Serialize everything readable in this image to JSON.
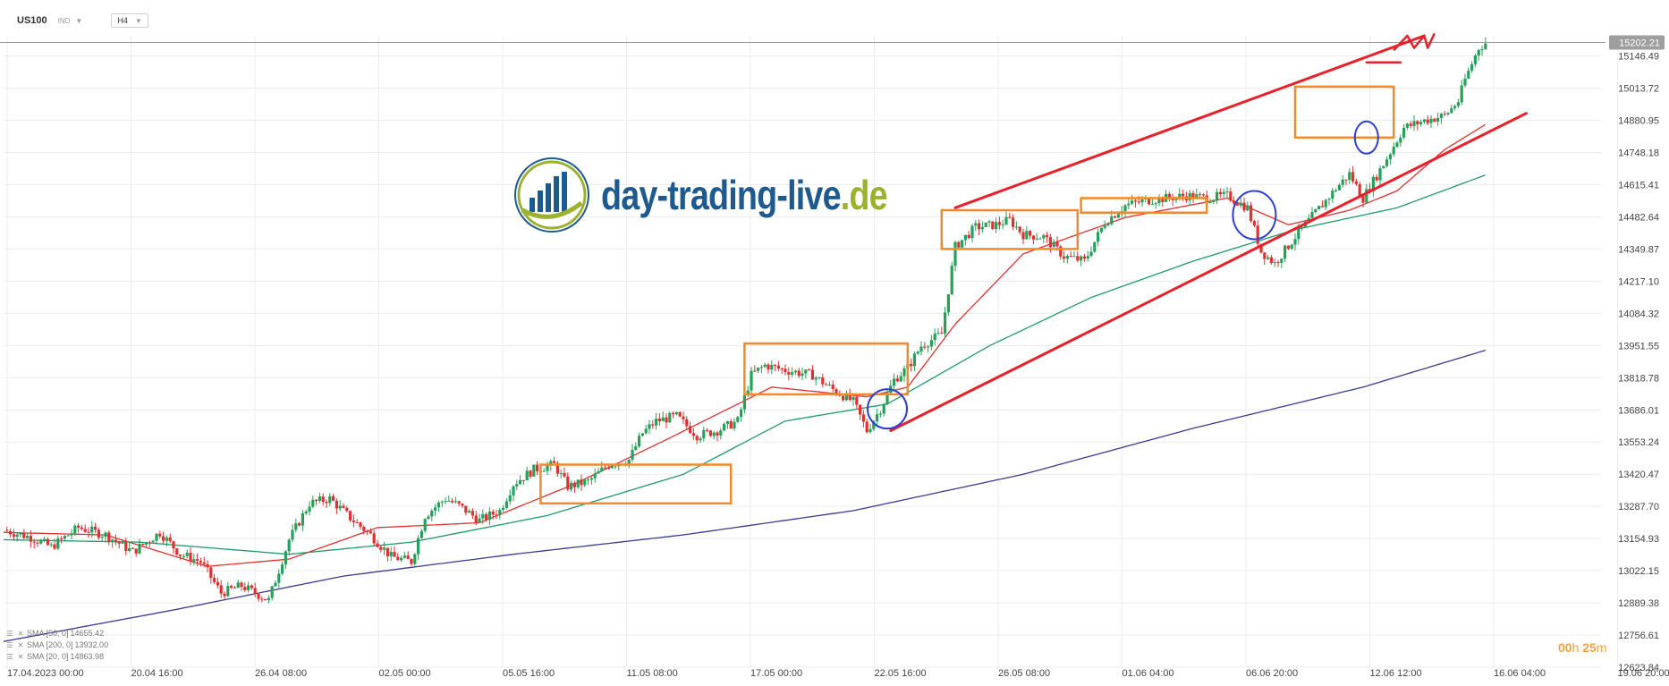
{
  "header": {
    "symbol": "US100",
    "badge": "IND",
    "timeframe": "H4"
  },
  "logo": {
    "name": "day-trading-live",
    "tld": ".de"
  },
  "indicators": [
    {
      "label": "SMA [50, 0]",
      "value": "14655.42"
    },
    {
      "label": "SMA [200, 0]",
      "value": "13932.00"
    },
    {
      "label": "SMA [20, 0]",
      "value": "14863.98"
    }
  ],
  "countdown": {
    "hours": "00",
    "h_unit": "h",
    "minutes": "25",
    "m_unit": "m"
  },
  "colors": {
    "up": "#26a05a",
    "down": "#e0302f",
    "sma20": "#e0302f",
    "sma50": "#1f9a6a",
    "sma200": "#3b3a8c",
    "channel": "#e8202a",
    "boxes": "#f28a2b",
    "circles": "#2f3fd0",
    "price_tag": "#9e9e9e"
  },
  "chart_data": {
    "type": "candlestick",
    "timeframe": "H4",
    "ylim": [
      12623.84,
      15230
    ],
    "y_ticks": [
      "15146.49",
      "15013.72",
      "14880.95",
      "14748.18",
      "14615.41",
      "14482.64",
      "14349.87",
      "14217.10",
      "14084.32",
      "13951.55",
      "13818.78",
      "13686.01",
      "13553.24",
      "13420.47",
      "13287.70",
      "13154.93",
      "13022.15",
      "12889.38",
      "12756.61",
      "12623.84"
    ],
    "x_ticks": [
      "17.04.2023  00:00",
      "20.04  16:00",
      "26.04  08:00",
      "02.05  00:00",
      "05.05  16:00",
      "11.05  08:00",
      "17.05  00:00",
      "22.05  16:00",
      "26.05  08:00",
      "01.06  04:00",
      "06.06  20:00",
      "12.06  12:00",
      "16.06  04:00",
      "19.06  20:00"
    ],
    "last_price": "15202.21",
    "close_path": [
      [
        0,
        13190
      ],
      [
        8,
        13160
      ],
      [
        14,
        13120
      ],
      [
        22,
        13200
      ],
      [
        30,
        13170
      ],
      [
        38,
        13100
      ],
      [
        46,
        13180
      ],
      [
        52,
        13090
      ],
      [
        58,
        13060
      ],
      [
        64,
        12930
      ],
      [
        70,
        12960
      ],
      [
        78,
        12900
      ],
      [
        84,
        13150
      ],
      [
        90,
        13300
      ],
      [
        96,
        13320
      ],
      [
        102,
        13240
      ],
      [
        108,
        13170
      ],
      [
        114,
        13080
      ],
      [
        120,
        13060
      ],
      [
        124,
        13250
      ],
      [
        130,
        13320
      ],
      [
        134,
        13290
      ],
      [
        140,
        13230
      ],
      [
        146,
        13270
      ],
      [
        150,
        13380
      ],
      [
        156,
        13440
      ],
      [
        162,
        13460
      ],
      [
        166,
        13370
      ],
      [
        172,
        13390
      ],
      [
        178,
        13460
      ],
      [
        184,
        13480
      ],
      [
        188,
        13590
      ],
      [
        192,
        13640
      ],
      [
        198,
        13660
      ],
      [
        204,
        13580
      ],
      [
        210,
        13600
      ],
      [
        216,
        13640
      ],
      [
        220,
        13830
      ],
      [
        224,
        13870
      ],
      [
        230,
        13850
      ],
      [
        238,
        13830
      ],
      [
        244,
        13770
      ],
      [
        250,
        13720
      ],
      [
        254,
        13600
      ],
      [
        258,
        13690
      ],
      [
        262,
        13810
      ],
      [
        266,
        13860
      ],
      [
        270,
        13950
      ],
      [
        276,
        14000
      ],
      [
        280,
        14360
      ],
      [
        286,
        14440
      ],
      [
        292,
        14450
      ],
      [
        296,
        14470
      ],
      [
        300,
        14410
      ],
      [
        306,
        14400
      ],
      [
        312,
        14320
      ],
      [
        318,
        14300
      ],
      [
        324,
        14460
      ],
      [
        330,
        14530
      ],
      [
        336,
        14550
      ],
      [
        342,
        14560
      ],
      [
        348,
        14570
      ],
      [
        354,
        14560
      ],
      [
        360,
        14570
      ],
      [
        366,
        14520
      ],
      [
        370,
        14340
      ],
      [
        374,
        14290
      ],
      [
        380,
        14400
      ],
      [
        386,
        14500
      ],
      [
        392,
        14600
      ],
      [
        396,
        14660
      ],
      [
        400,
        14560
      ],
      [
        406,
        14700
      ],
      [
        412,
        14850
      ],
      [
        418,
        14880
      ],
      [
        424,
        14900
      ],
      [
        428,
        14960
      ],
      [
        430,
        15050
      ],
      [
        434,
        15180
      ],
      [
        436,
        15200
      ]
    ],
    "x_index_range": [
      0,
      470
    ],
    "series": [
      {
        "name": "SMA [20, 0]",
        "values": [
          [
            0,
            13180
          ],
          [
            30,
            13170
          ],
          [
            60,
            13040
          ],
          [
            84,
            13070
          ],
          [
            110,
            13200
          ],
          [
            140,
            13220
          ],
          [
            168,
            13380
          ],
          [
            196,
            13570
          ],
          [
            226,
            13780
          ],
          [
            254,
            13740
          ],
          [
            266,
            13780
          ],
          [
            280,
            14040
          ],
          [
            300,
            14330
          ],
          [
            330,
            14480
          ],
          [
            360,
            14560
          ],
          [
            378,
            14450
          ],
          [
            396,
            14510
          ],
          [
            410,
            14590
          ],
          [
            424,
            14760
          ],
          [
            436,
            14863.98
          ]
        ]
      },
      {
        "name": "SMA [50, 0]",
        "values": [
          [
            0,
            13150
          ],
          [
            40,
            13140
          ],
          [
            84,
            13090
          ],
          [
            120,
            13140
          ],
          [
            160,
            13250
          ],
          [
            200,
            13420
          ],
          [
            230,
            13640
          ],
          [
            260,
            13710
          ],
          [
            290,
            13950
          ],
          [
            320,
            14150
          ],
          [
            350,
            14300
          ],
          [
            380,
            14430
          ],
          [
            410,
            14520
          ],
          [
            436,
            14655.42
          ]
        ]
      },
      {
        "name": "SMA [200, 0]",
        "values": [
          [
            0,
            12730
          ],
          [
            50,
            12860
          ],
          [
            100,
            13000
          ],
          [
            150,
            13090
          ],
          [
            200,
            13170
          ],
          [
            250,
            13270
          ],
          [
            300,
            13420
          ],
          [
            350,
            13610
          ],
          [
            400,
            13780
          ],
          [
            436,
            13932.0
          ]
        ]
      }
    ]
  }
}
